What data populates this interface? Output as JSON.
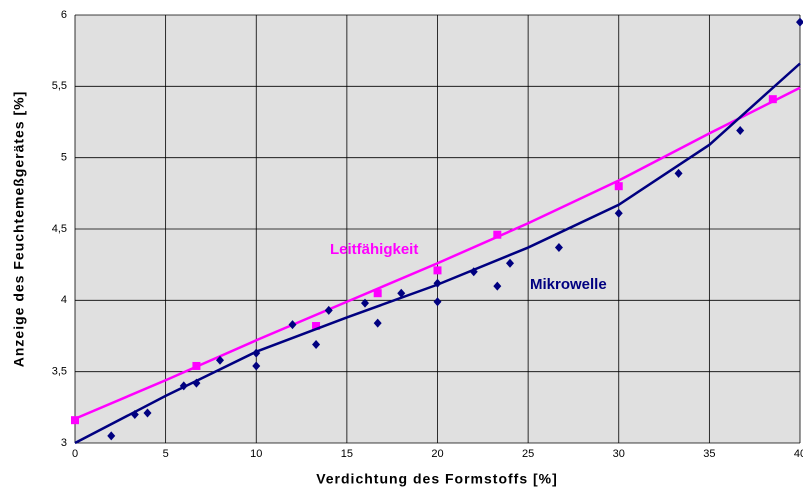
{
  "chart_data": {
    "type": "scatter",
    "x_label": "Verdichtung des Formstoffs [%]",
    "y_label": "Anzeige des Feuchtemeßgerätes [%]",
    "xlim": [
      0,
      40
    ],
    "xticks": [
      0,
      5,
      10,
      15,
      20,
      25,
      30,
      35,
      40
    ],
    "ylim": [
      3,
      6
    ],
    "yticks": [
      3,
      {
        "value": 3.5,
        "label": "3,5"
      },
      4,
      {
        "value": 4.5,
        "label": "4,5"
      },
      5,
      {
        "value": 5.5,
        "label": "5,5"
      },
      6
    ],
    "grid": true,
    "series": [
      {
        "name": "Leitfähigkeit",
        "color": "#ff00ff",
        "marker": "square",
        "x": [
          0,
          6.7,
          13.3,
          16.7,
          20,
          23.3,
          30,
          38.5
        ],
        "values": [
          3.16,
          3.54,
          3.82,
          4.05,
          4.21,
          4.46,
          4.8,
          5.41
        ],
        "trend": {
          "x": [
            0,
            5,
            10,
            15,
            20,
            25,
            30,
            35,
            40
          ],
          "values": [
            3.17,
            3.44,
            3.72,
            3.99,
            4.26,
            4.54,
            4.84,
            5.17,
            5.49
          ]
        }
      },
      {
        "name": "Mikrowelle",
        "color": "#000080",
        "marker": "diamond",
        "x": [
          2,
          3.3,
          4,
          6,
          6.7,
          8,
          10,
          10,
          12,
          13.3,
          14,
          16,
          16.7,
          18,
          20,
          20,
          22,
          23.3,
          24,
          26.7,
          30,
          33.3,
          36.7,
          40
        ],
        "values": [
          3.05,
          3.2,
          3.21,
          3.4,
          3.42,
          3.58,
          3.54,
          3.63,
          3.83,
          3.69,
          3.93,
          3.98,
          3.84,
          4.05,
          3.99,
          4.12,
          4.2,
          4.1,
          4.26,
          4.37,
          4.61,
          4.89,
          5.19,
          5.95
        ],
        "trend": {
          "x": [
            0,
            5,
            10,
            15,
            20,
            25,
            30,
            35,
            40
          ],
          "values": [
            3.0,
            3.33,
            3.64,
            3.88,
            4.11,
            4.37,
            4.67,
            5.09,
            5.66
          ]
        }
      }
    ]
  }
}
